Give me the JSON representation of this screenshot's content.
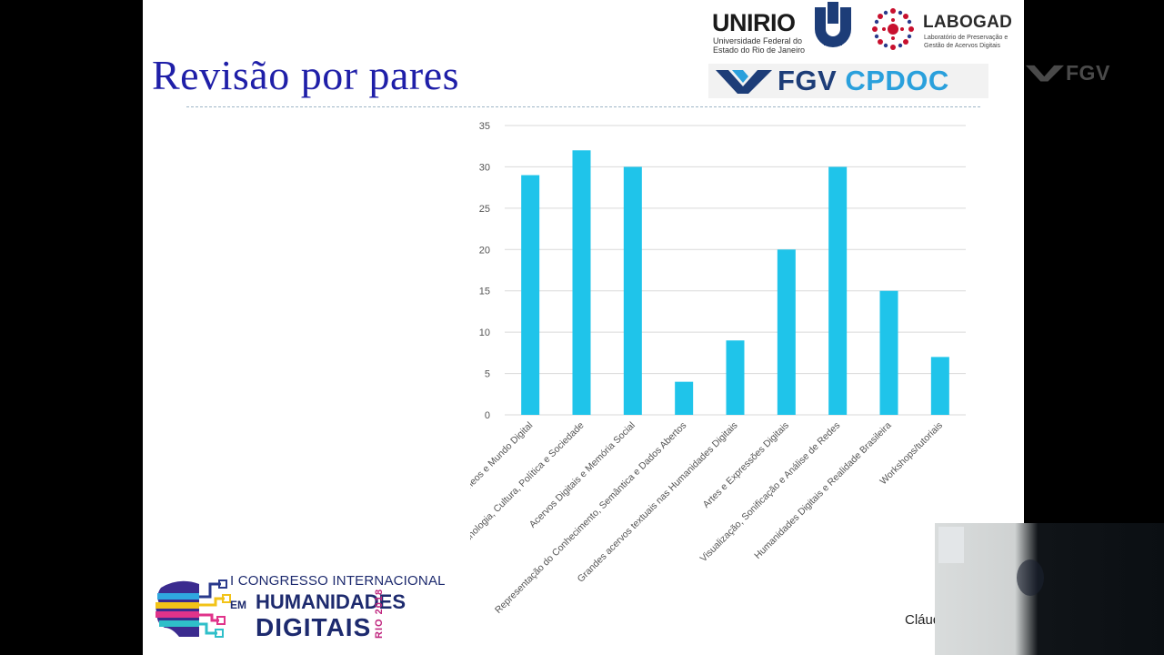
{
  "slide": {
    "title": "Revisão por pares",
    "credit": "Cláudio©"
  },
  "logos": {
    "unirio": {
      "name": "UNIRIO",
      "subtitle_line1": "Universidade Federal do",
      "subtitle_line2": "Estado do Rio de Janeiro"
    },
    "labogad": {
      "name": "LABOGAD",
      "subtitle_line1": "Laboratório de Preservação e",
      "subtitle_line2": "Gestão de Acervos Digitais"
    },
    "fgv_cpdoc": {
      "fgv": "FGV",
      "cpdoc": "CPDOC"
    },
    "congress": {
      "line1": "I CONGRESSO INTERNACIONAL",
      "em": "EM",
      "line2": "HUMANIDADES",
      "line3": "DIGITAIS",
      "year": "RIO 2018"
    },
    "fgv_watermark": "FGV"
  },
  "colors": {
    "title": "#1f1fa8",
    "bar": "#1fc4ea",
    "grid": "#d9d9d9",
    "fgv_blue": "#1d3d78",
    "cpdoc_blue": "#2aa0dc",
    "background_frame": "#000000"
  },
  "icons": [
    "unirio-mark-icon",
    "labogad-mark-icon",
    "fgv-mark-icon",
    "congress-head-icon"
  ],
  "chart_data": {
    "type": "bar",
    "categories": [
      "Pensamentos Contemporâneos e Mundo Digital",
      "Tecnologia, Cultura, Política e Sociedade",
      "Acervos Digitais e Memória Social",
      "Representação do Conhecimento, Semântica e Dados Abertos",
      "Grandes acervos textuais nas Humanidades Digitais",
      "Artes e Expressões Digitais",
      "Visualização, Sonificação e Análise de Redes",
      "Humanidades Digitais e Realidade Brasileira",
      "Workshops/tutoriais"
    ],
    "values": [
      29,
      32,
      30,
      4,
      9,
      20,
      30,
      15,
      7
    ],
    "yticks": [
      0,
      5,
      10,
      15,
      20,
      25,
      30,
      35
    ],
    "ylim": [
      0,
      35
    ],
    "grid": true,
    "legend": "none"
  }
}
